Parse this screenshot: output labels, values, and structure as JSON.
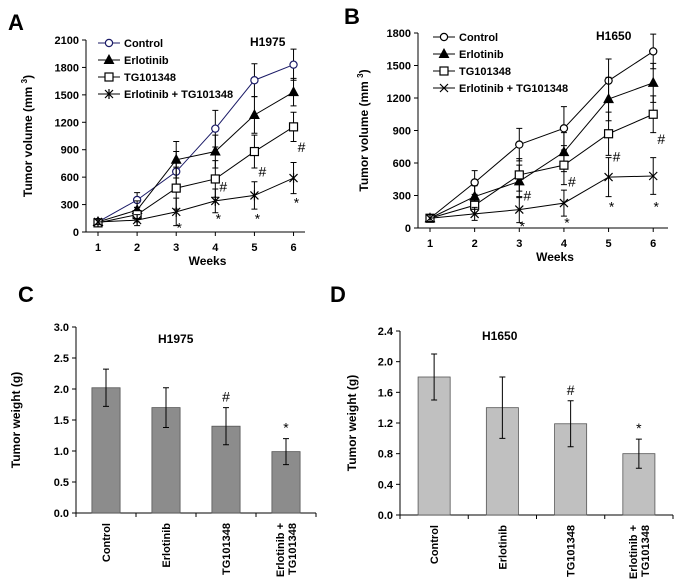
{
  "chart_data": [
    {
      "panel": "A",
      "type": "line",
      "cell_line": "H1975",
      "xlabel": "Weeks",
      "ylabel": "Tumor volume (mm 3)",
      "x": [
        1,
        2,
        3,
        4,
        5,
        6
      ],
      "ylim": [
        0,
        2100
      ],
      "yticks": [
        0,
        300,
        600,
        900,
        1200,
        1500,
        1800,
        2100
      ],
      "legend_position": "top-left",
      "series": [
        {
          "name": "Control",
          "marker": "open-circle",
          "color": "#1a1a66",
          "values": [
            110,
            350,
            660,
            1130,
            1660,
            1830
          ],
          "err": [
            30,
            80,
            220,
            200,
            180,
            170
          ]
        },
        {
          "name": "Erlotinib",
          "marker": "filled-triangle",
          "color": "#000000",
          "values": [
            110,
            240,
            790,
            880,
            1280,
            1530
          ],
          "err": [
            30,
            100,
            200,
            180,
            200,
            150
          ]
        },
        {
          "name": "TG101348",
          "marker": "open-square",
          "color": "#000000",
          "values": [
            100,
            190,
            480,
            580,
            880,
            1150
          ],
          "err": [
            30,
            80,
            230,
            200,
            180,
            160
          ]
        },
        {
          "name": "Erlotinib + TG101348",
          "marker": "star",
          "color": "#000000",
          "values": [
            110,
            130,
            220,
            340,
            400,
            590
          ],
          "err": [
            30,
            60,
            150,
            130,
            150,
            170
          ]
        }
      ],
      "annotations": [
        {
          "x": 3,
          "y": 50,
          "text": "*"
        },
        {
          "x": 4,
          "y": 150,
          "text": "*"
        },
        {
          "x": 5,
          "y": 150,
          "text": "*"
        },
        {
          "x": 6,
          "y": 320,
          "text": "*"
        },
        {
          "x": 4,
          "y": 500,
          "text": "#"
        },
        {
          "x": 5,
          "y": 660,
          "text": "#"
        },
        {
          "x": 6,
          "y": 930,
          "text": "#"
        }
      ]
    },
    {
      "panel": "B",
      "type": "line",
      "cell_line": "H1650",
      "xlabel": "Weeks",
      "ylabel": "Tumor volume (mm 3)",
      "x": [
        1,
        2,
        3,
        4,
        5,
        6
      ],
      "ylim": [
        0,
        1800
      ],
      "yticks": [
        0,
        300,
        600,
        900,
        1200,
        1500,
        1800
      ],
      "legend_position": "top-left",
      "series": [
        {
          "name": "Control",
          "marker": "open-circle",
          "color": "#000000",
          "values": [
            90,
            420,
            770,
            920,
            1360,
            1630
          ],
          "err": [
            30,
            110,
            150,
            200,
            200,
            160
          ]
        },
        {
          "name": "Erlotinib",
          "marker": "filled-triangle",
          "color": "#000000",
          "values": [
            90,
            290,
            430,
            700,
            1190,
            1340
          ],
          "err": [
            30,
            100,
            150,
            180,
            200,
            180
          ]
        },
        {
          "name": "TG101348",
          "marker": "open-square",
          "color": "#000000",
          "values": [
            90,
            210,
            490,
            580,
            870,
            1050
          ],
          "err": [
            30,
            80,
            150,
            180,
            200,
            170
          ]
        },
        {
          "name": "Erlotinib + TG101348",
          "marker": "x",
          "color": "#000000",
          "values": [
            90,
            130,
            170,
            230,
            470,
            480
          ],
          "err": [
            30,
            60,
            120,
            120,
            180,
            170
          ]
        }
      ],
      "annotations": [
        {
          "x": 3,
          "y": 20,
          "text": "*"
        },
        {
          "x": 4,
          "y": 50,
          "text": "*"
        },
        {
          "x": 5,
          "y": 200,
          "text": "*"
        },
        {
          "x": 6,
          "y": 200,
          "text": "*"
        },
        {
          "x": 3,
          "y": 300,
          "text": "#"
        },
        {
          "x": 4,
          "y": 430,
          "text": "#"
        },
        {
          "x": 5,
          "y": 660,
          "text": "#"
        },
        {
          "x": 6,
          "y": 820,
          "text": "#"
        }
      ]
    },
    {
      "panel": "C",
      "type": "bar",
      "cell_line": "H1975",
      "ylabel": "Tumor weight (g)",
      "categories": [
        "Control",
        "Erlotinib",
        "TG101348",
        "Erlotinib + TG101348"
      ],
      "values": [
        2.02,
        1.7,
        1.4,
        0.99
      ],
      "err": [
        0.3,
        0.32,
        0.3,
        0.21
      ],
      "significance": [
        "",
        "",
        "#",
        "*"
      ],
      "ylim": [
        0,
        3.0
      ],
      "yticks": [
        "0.0",
        "0.5",
        "1.0",
        "1.5",
        "2.0",
        "2.5",
        "3.0"
      ],
      "bar_color": "#8c8c8c"
    },
    {
      "panel": "D",
      "type": "bar",
      "cell_line": "H1650",
      "ylabel": "Tumor weight (g)",
      "categories": [
        "Control",
        "Erlotinib",
        "TG101348",
        "Erlotinib + TG101348"
      ],
      "values": [
        1.8,
        1.4,
        1.19,
        0.8
      ],
      "err": [
        0.3,
        0.4,
        0.3,
        0.19
      ],
      "significance": [
        "",
        "",
        "#",
        "*"
      ],
      "ylim": [
        0,
        2.4
      ],
      "yticks": [
        "0.0",
        "0.4",
        "0.8",
        "1.2",
        "1.6",
        "2.0",
        "2.4"
      ],
      "bar_color": "#c0c0c0"
    }
  ]
}
